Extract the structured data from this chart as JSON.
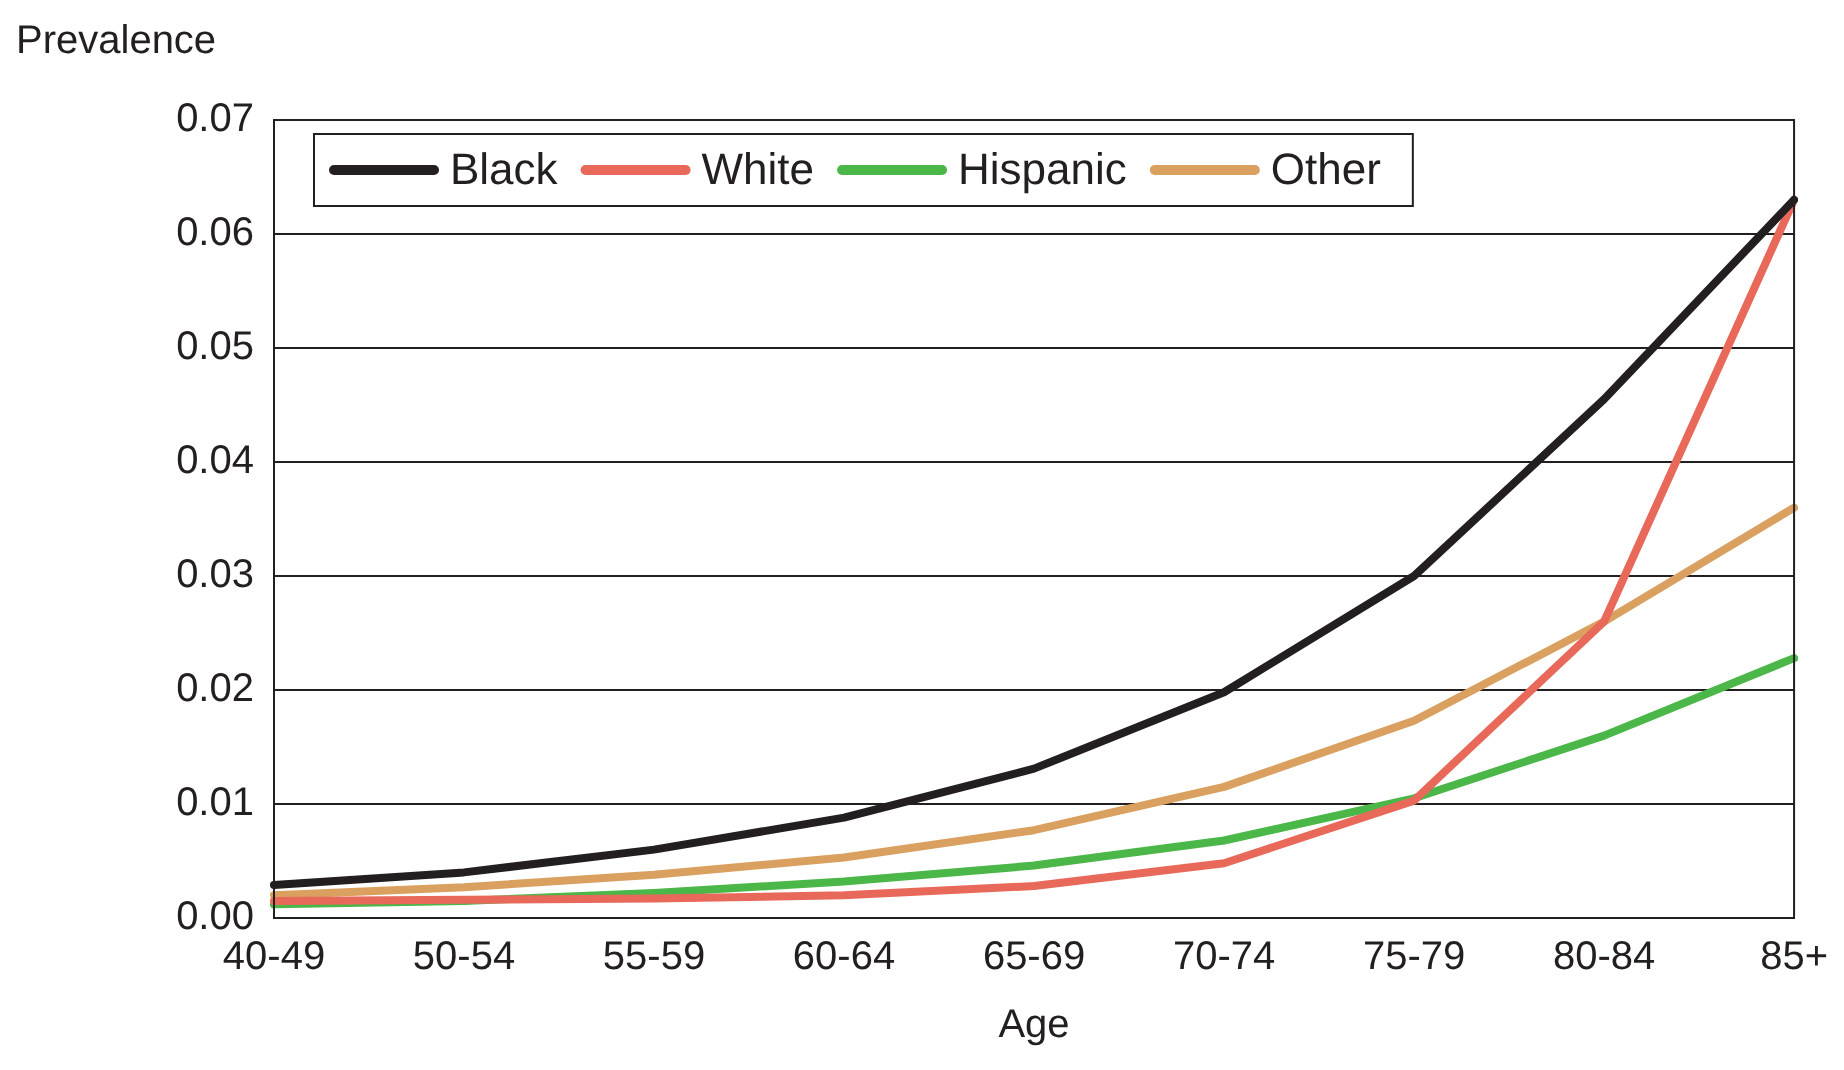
{
  "chart_data": {
    "type": "line",
    "xlabel": "Age",
    "ylabel": "Prevalence",
    "categories": [
      "40-49",
      "50-54",
      "55-59",
      "60-64",
      "65-69",
      "70-74",
      "75-79",
      "80-84",
      "85+"
    ],
    "series": [
      {
        "name": "Black",
        "color": "#231f20",
        "values": [
          0.0029,
          0.004,
          0.006,
          0.0088,
          0.0131,
          0.0198,
          0.03,
          0.0455,
          0.063
        ]
      },
      {
        "name": "White",
        "color": "#e8695a",
        "values": [
          0.0015,
          0.0016,
          0.0017,
          0.002,
          0.0028,
          0.0048,
          0.0103,
          0.026,
          0.063
        ]
      },
      {
        "name": "Hispanic",
        "color": "#4ab748",
        "values": [
          0.0012,
          0.0015,
          0.0022,
          0.0032,
          0.0046,
          0.0068,
          0.0105,
          0.016,
          0.0228
        ]
      },
      {
        "name": "Other",
        "color": "#d9a060",
        "values": [
          0.002,
          0.0027,
          0.0038,
          0.0053,
          0.0077,
          0.0115,
          0.0173,
          0.026,
          0.036
        ]
      }
    ],
    "ylim": [
      0,
      0.07
    ],
    "yticks": [
      {
        "value": 0,
        "label": "0.00"
      },
      {
        "value": 0.01,
        "label": "0.01"
      },
      {
        "value": 0.02,
        "label": "0.02"
      },
      {
        "value": 0.03,
        "label": "0.03"
      },
      {
        "value": 0.04,
        "label": "0.04"
      },
      {
        "value": 0.05,
        "label": "0.05"
      },
      {
        "value": 0.06,
        "label": "0.06"
      },
      {
        "value": 0.07,
        "label": "0.07"
      }
    ],
    "grid": "y",
    "legend": "top left",
    "marker": "none",
    "line_style": "solid"
  }
}
